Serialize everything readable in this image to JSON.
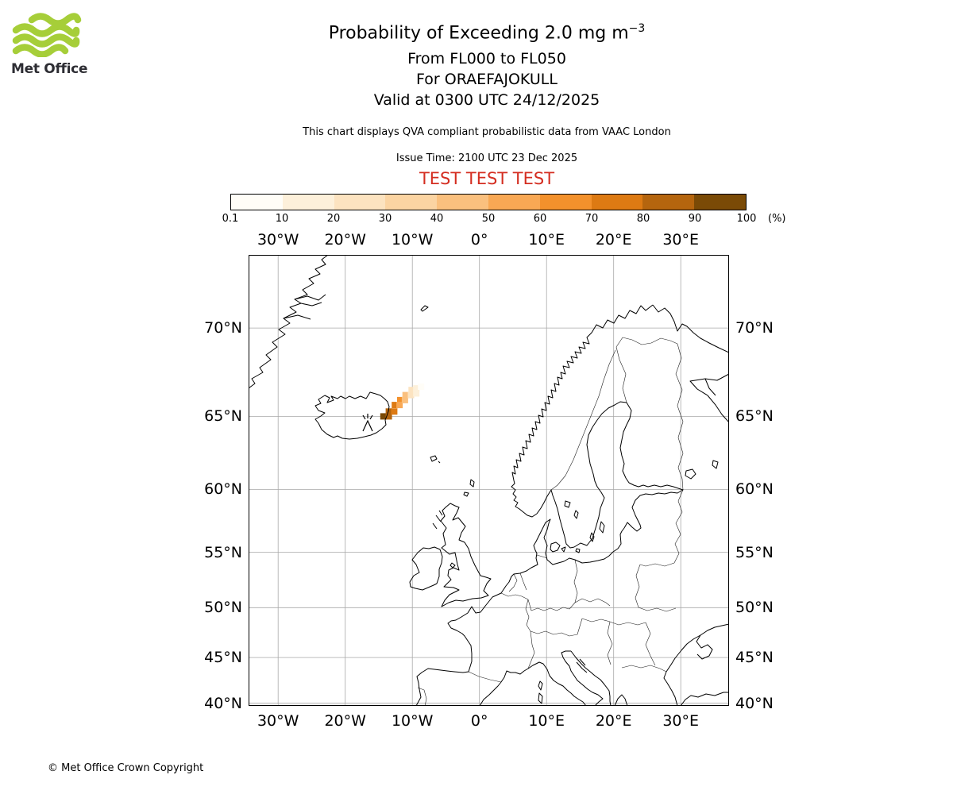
{
  "logo": {
    "text": "Met Office",
    "green": "#a6ce39",
    "text_color": "#2d2d33"
  },
  "header": {
    "title_prefix": "Probability of Exceeding 2.0 mg m",
    "title_sup": "−3",
    "line2": "From FL000 to FL050",
    "line3": "For ORAEFAJOKULL",
    "line4": "Valid at 0300 UTC 24/12/2025",
    "note": "This chart displays QVA compliant probabilistic data from VAAC London",
    "issue_time": "Issue Time: 2100 UTC 23 Dec 2025",
    "test_banner": "TEST TEST TEST",
    "test_color": "#d42d20"
  },
  "colorbar": {
    "unit_label": "(%)",
    "tick_labels": [
      "0.1",
      "10",
      "20",
      "30",
      "40",
      "50",
      "60",
      "70",
      "80",
      "90",
      "100"
    ],
    "thresholds": [
      0.1,
      10,
      20,
      30,
      40,
      50,
      60,
      70,
      80,
      90,
      100
    ],
    "colors": [
      "#fffdf7",
      "#fdf0da",
      "#fce3c0",
      "#fbd4a2",
      "#fac07e",
      "#f8a854",
      "#f3912c",
      "#dd7a13",
      "#b5650e",
      "#7a4a06"
    ]
  },
  "map": {
    "grid_lons": [
      -30,
      -20,
      -10,
      0,
      10,
      20,
      30
    ],
    "lon_labels": [
      "30°W",
      "20°W",
      "10°W",
      "0°",
      "10°E",
      "20°E",
      "30°E"
    ],
    "grid_lats": [
      70,
      65,
      60,
      55,
      50,
      45,
      40
    ],
    "lat_labels": [
      "70°N",
      "65°N",
      "60°N",
      "55°N",
      "50°N",
      "45°N",
      "40°N"
    ],
    "volcano_name": "ORAEFAJOKULL"
  },
  "footer": {
    "copyright": "© Met Office Crown Copyright"
  },
  "chart_data": {
    "type": "heatmap",
    "title": "Probability of Exceeding 2.0 mg m⁻³",
    "subtitle": [
      "From FL000 to FL050",
      "For ORAEFAJOKULL",
      "Valid at 0300 UTC 24/12/2025"
    ],
    "units": "%",
    "legend_thresholds": [
      0.1,
      10,
      20,
      30,
      40,
      50,
      60,
      70,
      80,
      90,
      100
    ],
    "legend_position": "top",
    "projection": "mercator",
    "grid": true,
    "extent": {
      "lon_min": -34.4,
      "lon_max": 37.2,
      "lat_min": 39.7,
      "lat_max": 73.4
    },
    "volcano": {
      "name": "ORAEFAJOKULL",
      "lon": -16.65,
      "lat": 64.0
    },
    "cells": [
      {
        "lon": -14.3,
        "lat": 65.0,
        "value": 95
      },
      {
        "lon": -13.5,
        "lat": 65.3,
        "value": 85
      },
      {
        "lon": -13.5,
        "lat": 65.0,
        "value": 80
      },
      {
        "lon": -12.6,
        "lat": 65.7,
        "value": 75
      },
      {
        "lon": -12.7,
        "lat": 65.3,
        "value": 70
      },
      {
        "lon": -11.8,
        "lat": 66.0,
        "value": 65
      },
      {
        "lon": -11.9,
        "lat": 65.7,
        "value": 55
      },
      {
        "lon": -11.0,
        "lat": 66.3,
        "value": 45
      },
      {
        "lon": -11.1,
        "lat": 66.0,
        "value": 40
      },
      {
        "lon": -10.1,
        "lat": 66.6,
        "value": 28
      },
      {
        "lon": -10.2,
        "lat": 66.3,
        "value": 22
      },
      {
        "lon": -9.4,
        "lat": 66.7,
        "value": 15
      },
      {
        "lon": -9.4,
        "lat": 66.4,
        "value": 12
      },
      {
        "lon": -8.7,
        "lat": 66.8,
        "value": 5
      }
    ]
  }
}
